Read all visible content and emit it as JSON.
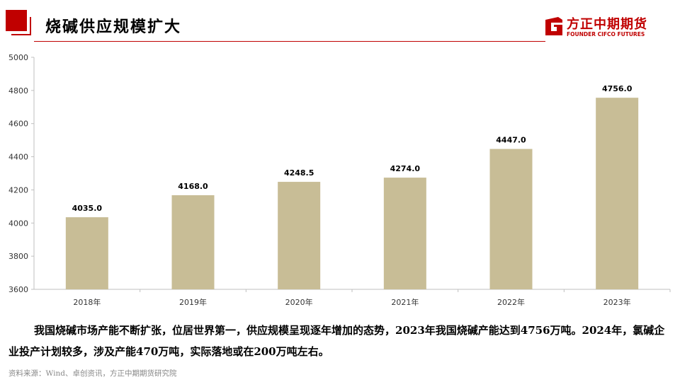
{
  "header": {
    "title": "烧碱供应规模扩大",
    "logo_cn": "方正中期期货",
    "logo_en": "FOUNDER CIFCO FUTURES",
    "accent_color": "#c00000"
  },
  "chart_data": {
    "type": "bar",
    "categories": [
      "2018年",
      "2019年",
      "2020年",
      "2021年",
      "2022年",
      "2023年"
    ],
    "values": [
      4035.0,
      4168.0,
      4248.5,
      4274.0,
      4447.0,
      4756.0
    ],
    "data_labels": [
      "4035.0",
      "4168.0",
      "4248.5",
      "4274.0",
      "4447.0",
      "4756.0"
    ],
    "yticks": [
      "3600",
      "3800",
      "4000",
      "4200",
      "4400",
      "4600",
      "4800",
      "5000"
    ],
    "ylim": [
      3600,
      5000
    ],
    "title": "",
    "xlabel": "",
    "ylabel": "",
    "grid": false,
    "bar_color": "#c8bd96"
  },
  "description": "我国烧碱市场产能不断扩张，位居世界第一，供应规模呈现逐年增加的态势，2023年我国烧碱产能达到4756万吨。2024年，氯碱企业投产计划较多，涉及产能470万吨，实际落地或在200万吨左右。",
  "source": "资料来源：Wind、卓创资讯，方正中期期货研究院"
}
